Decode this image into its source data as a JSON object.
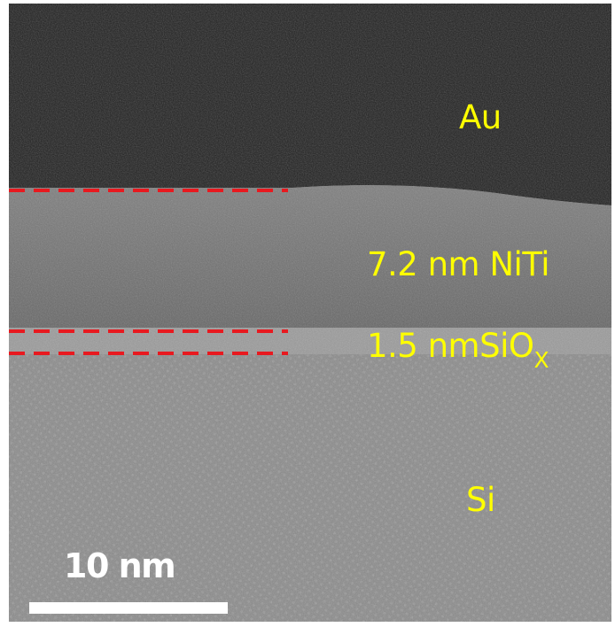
{
  "image": {
    "subject": "cross-sectional electron micrograph",
    "colors": {
      "frame": "#ffffff",
      "gold_layer": "#1c1c1c",
      "interface_markers": "#e8191f",
      "layer_labels": "#ffff00",
      "scale_bar": "#ffffff"
    }
  },
  "labels": {
    "au": "Au",
    "niti": "7.2 nm NiTi",
    "siox_main": "1.5 nmSiO",
    "siox_subscript": "X",
    "si": "Si"
  },
  "scale_bar": {
    "text": "10 nm"
  }
}
